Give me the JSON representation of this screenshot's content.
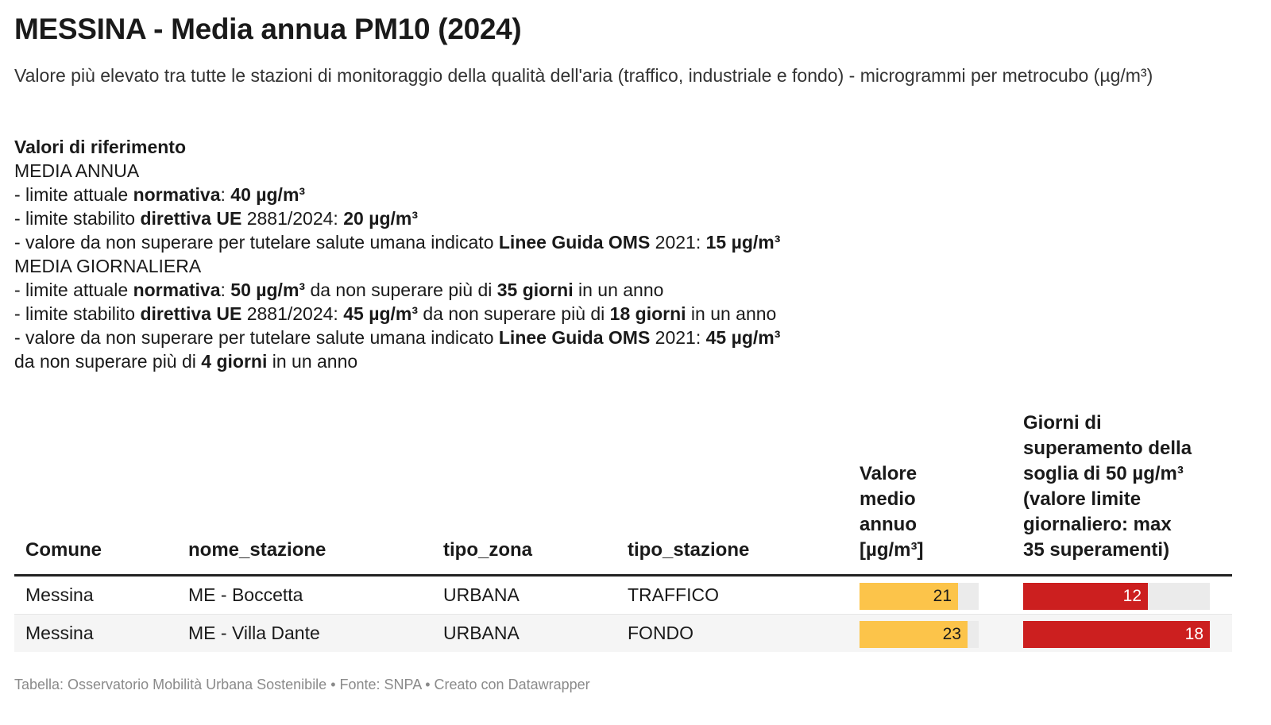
{
  "title": "MESSINA - Media annua PM10 (2024)",
  "subtitle": "Valore più elevato tra tutte le stazioni di monitoraggio della qualità dell'aria (traffico, industriale e fondo) - microgrammi per metrocubo (µg/m³)",
  "notes": {
    "heading": "Valori di riferimento",
    "annual_heading": "MEDIA ANNUA",
    "annual": [
      [
        {
          "t": "- limite attuale "
        },
        {
          "t": "normativa",
          "b": true
        },
        {
          "t": ": "
        },
        {
          "t": "40 µg/m³",
          "b": true
        }
      ],
      [
        {
          "t": "- limite stabilito "
        },
        {
          "t": "direttiva UE",
          "b": true
        },
        {
          "t": " 2881/2024: "
        },
        {
          "t": "20 µg/m³",
          "b": true
        }
      ],
      [
        {
          "t": "- valore da non superare per tutelare salute umana indicato "
        },
        {
          "t": "Linee Guida OMS",
          "b": true
        },
        {
          "t": " 2021: "
        },
        {
          "t": "15 µg/m³",
          "b": true
        }
      ]
    ],
    "daily_heading": "MEDIA GIORNALIERA",
    "daily": [
      [
        {
          "t": "- limite attuale "
        },
        {
          "t": "normativa",
          "b": true
        },
        {
          "t": ": "
        },
        {
          "t": "50 µg/m³",
          "b": true
        },
        {
          "t": " da non superare più di "
        },
        {
          "t": "35 giorni",
          "b": true
        },
        {
          "t": " in un anno"
        }
      ],
      [
        {
          "t": "- limite stabilito "
        },
        {
          "t": "direttiva UE",
          "b": true
        },
        {
          "t": " 2881/2024: "
        },
        {
          "t": "45 µg/m³",
          "b": true
        },
        {
          "t": " da non superare più di "
        },
        {
          "t": "18 giorni",
          "b": true
        },
        {
          "t": " in un anno"
        }
      ],
      [
        {
          "t": "- valore da non superare per tutelare salute umana indicato "
        },
        {
          "t": "Linee Guida OMS",
          "b": true
        },
        {
          "t": " 2021: "
        },
        {
          "t": "45 µg/m³",
          "b": true
        }
      ],
      [
        {
          "t": "da non superare più di "
        },
        {
          "t": "4 giorni",
          "b": true
        },
        {
          "t": " in un anno"
        }
      ]
    ]
  },
  "table": {
    "headers": {
      "comune": "Comune",
      "nome_stazione": "nome_stazione",
      "tipo_zona": "tipo_zona",
      "tipo_stazione": "tipo_stazione",
      "valore_lines": [
        "Valore",
        "medio",
        "annuo",
        "[µg/m³]"
      ],
      "giorni_lines": [
        "Giorni di",
        "superamento della",
        "soglia di 50 µg/m³",
        "(valore limite",
        "giornaliero: max",
        "35 superamenti)"
      ]
    },
    "valore_max": 23,
    "giorni_max": 18,
    "valore_color": "#fcc44a",
    "giorni_color": "#cc1f1f",
    "rows": [
      {
        "comune": "Messina",
        "nome_stazione": "ME - Boccetta",
        "tipo_zona": "URBANA",
        "tipo_stazione": "TRAFFICO",
        "valore": 21,
        "giorni": 12
      },
      {
        "comune": "Messina",
        "nome_stazione": "ME - Villa Dante",
        "tipo_zona": "URBANA",
        "tipo_stazione": "FONDO",
        "valore": 23,
        "giorni": 18
      }
    ]
  },
  "footer": "Tabella: Osservatorio Mobilità Urbana Sostenibile • Fonte: SNPA • Creato con Datawrapper"
}
